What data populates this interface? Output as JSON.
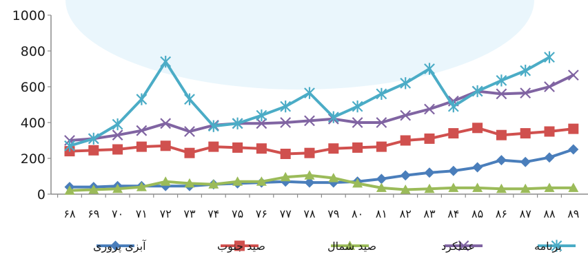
{
  "chart_data": {
    "type": "line",
    "title": "",
    "xlabel": "",
    "ylabel": "",
    "ylim": [
      0,
      1000
    ],
    "yticks": [
      "0",
      "200",
      "400",
      "600",
      "800",
      "1000"
    ],
    "grid": false,
    "legend_position": "bottom",
    "categories": [
      "۶۸",
      "۶۹",
      "۷۰",
      "۷۱",
      "۷۲",
      "۷۳",
      "۷۴",
      "۷۵",
      "۷۶",
      "۷۷",
      "۷۸",
      "۷۹",
      "۸۰",
      "۸۱",
      "۸۲",
      "۸۳",
      "۸۴",
      "۸۵",
      "۸۶",
      "۸۷",
      "۸۸",
      "۸۹"
    ],
    "series": [
      {
        "name": "آبزی پروری",
        "color": "#4a7ebb",
        "marker": "diamond",
        "values": [
          40,
          40,
          45,
          45,
          45,
          45,
          55,
          60,
          65,
          70,
          65,
          65,
          70,
          85,
          105,
          120,
          130,
          150,
          190,
          180,
          205,
          250
        ]
      },
      {
        "name": "صید جنوب",
        "color": "#d0504e",
        "marker": "square",
        "values": [
          240,
          245,
          250,
          265,
          270,
          230,
          265,
          260,
          255,
          225,
          230,
          255,
          260,
          265,
          300,
          310,
          340,
          370,
          330,
          340,
          350,
          365
        ]
      },
      {
        "name": "صید شمال",
        "color": "#9bbb59",
        "marker": "triangle",
        "values": [
          20,
          25,
          30,
          40,
          70,
          60,
          55,
          70,
          70,
          95,
          105,
          90,
          60,
          35,
          25,
          30,
          35,
          35,
          30,
          30,
          35,
          35
        ]
      },
      {
        "name": "عملکرد",
        "color": "#8064a2",
        "marker": "x",
        "values": [
          300,
          310,
          330,
          355,
          395,
          350,
          385,
          395,
          395,
          400,
          410,
          420,
          400,
          400,
          440,
          475,
          520,
          575,
          560,
          565,
          600,
          665
        ]
      },
      {
        "name": "برنامه",
        "color": "#4bacc6",
        "marker": "star",
        "values": [
          270,
          310,
          390,
          530,
          740,
          530,
          380,
          395,
          440,
          490,
          565,
          430,
          490,
          560,
          620,
          700,
          490,
          575,
          635,
          690,
          765,
          null
        ]
      }
    ]
  }
}
